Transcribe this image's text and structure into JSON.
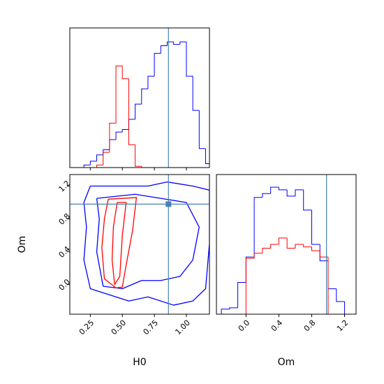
{
  "chart_data": [
    {
      "type": "histogram",
      "xlim": [
        0.09,
        1.18
      ],
      "ylim": [
        0,
        1.1
      ],
      "xticks": [
        0.25,
        0.5,
        0.75,
        1.0
      ],
      "xticklabels": false,
      "truth": 0.86,
      "truth_color": "#4682b4",
      "bins": [
        0.1,
        0.15,
        0.2,
        0.25,
        0.3,
        0.35,
        0.4,
        0.45,
        0.5,
        0.55,
        0.6,
        0.65,
        0.7,
        0.75,
        0.8,
        0.85,
        0.9,
        0.95,
        1.0,
        1.05,
        1.1,
        1.15,
        1.2
      ],
      "series": [
        {
          "color": "#0000ff",
          "values": [
            0,
            0,
            0.02,
            0.05,
            0.1,
            0.14,
            0.22,
            0.28,
            0.3,
            0.38,
            0.5,
            0.62,
            0.72,
            0.9,
            0.96,
            0.99,
            0.97,
            0.99,
            0.72,
            0.45,
            0.15,
            0.03
          ]
        },
        {
          "color": "#ff0000",
          "values": [
            0,
            0,
            0,
            0,
            0.02,
            0.12,
            0.35,
            0.8,
            0.7,
            0.18,
            0.01,
            0,
            0,
            0,
            0,
            0,
            0,
            0,
            0,
            0,
            0,
            0
          ]
        }
      ]
    },
    {
      "type": "contour",
      "xlabel": "H0",
      "ylabel": "Om",
      "xlim": [
        0.09,
        1.18
      ],
      "ylim": [
        -0.36,
        1.34
      ],
      "xticks": [
        {
          "value": 0.25,
          "label": "0.25"
        },
        {
          "value": 0.5,
          "label": "0.50"
        },
        {
          "value": 0.75,
          "label": "0.75"
        },
        {
          "value": 1.0,
          "label": "1.00"
        }
      ],
      "yticks": [
        {
          "value": 0.0,
          "label": "0.0"
        },
        0.4,
        0.8,
        1.2
      ],
      "truth_x": 0.86,
      "truth_y": 0.98,
      "truth_color": "#4682b4",
      "series": [
        {
          "color": "#0000ff",
          "x": [
            0.25,
            0.5,
            0.7,
            0.85,
            1.05,
            1.18,
            1.18,
            1.15,
            1.05,
            0.9,
            0.7,
            0.55,
            0.35,
            0.25,
            0.2,
            0.22,
            0.2,
            0.25
          ],
          "y": [
            1.2,
            1.2,
            1.2,
            1.25,
            1.2,
            1.15,
            0.5,
            -0.05,
            -0.2,
            -0.25,
            -0.15,
            -0.2,
            -0.1,
            -0.05,
            0.3,
            0.7,
            1.0,
            1.2
          ]
        },
        {
          "color": "#0000ff",
          "x": [
            0.3,
            0.6,
            0.8,
            1.0,
            1.1,
            1.05,
            0.95,
            0.8,
            0.65,
            0.5,
            0.35,
            0.3,
            0.32,
            0.3
          ],
          "y": [
            1.05,
            1.1,
            1.05,
            1.0,
            0.7,
            0.3,
            0.1,
            0.05,
            0.05,
            -0.05,
            -0.02,
            0.4,
            0.8,
            1.05
          ]
        },
        {
          "color": "#ff0000",
          "x": [
            0.39,
            0.61,
            0.58,
            0.53,
            0.5,
            0.45,
            0.36,
            0.34,
            0.36,
            0.39
          ],
          "y": [
            1.04,
            1.06,
            0.66,
            0.24,
            -0.03,
            -0.04,
            0.07,
            0.45,
            0.8,
            1.04
          ]
        },
        {
          "color": "#ff0000",
          "x": [
            0.46,
            0.53,
            0.5,
            0.48,
            0.44,
            0.42,
            0.43,
            0.46
          ],
          "y": [
            1.0,
            1.0,
            0.6,
            0.1,
            0.0,
            0.3,
            0.7,
            1.0
          ]
        }
      ]
    },
    {
      "type": "histogram",
      "xlabel": "Om",
      "xlim": [
        -0.36,
        1.34
      ],
      "ylim": [
        0,
        1.1
      ],
      "xticks": [
        {
          "value": 0.0,
          "label": "0.0"
        },
        0.4,
        0.8,
        1.2
      ],
      "xticklabels": true,
      "truth": 0.98,
      "truth_color": "#4682b4",
      "bins": [
        -0.3,
        -0.2,
        -0.1,
        0.0,
        0.1,
        0.2,
        0.3,
        0.4,
        0.5,
        0.6,
        0.7,
        0.8,
        0.9,
        1.0,
        1.1,
        1.2,
        1.3
      ],
      "series": [
        {
          "color": "#0000ff",
          "values": [
            0.04,
            0.05,
            0.25,
            0.45,
            0.92,
            0.95,
            1.0,
            0.98,
            0.93,
            0.98,
            0.82,
            0.55,
            0.42,
            0.2,
            0.1,
            0.0
          ]
        },
        {
          "color": "#ff0000",
          "values": [
            0,
            0,
            0,
            0.44,
            0.48,
            0.52,
            0.55,
            0.6,
            0.52,
            0.55,
            0.53,
            0.5,
            0.45,
            0,
            0,
            0
          ]
        }
      ]
    }
  ]
}
